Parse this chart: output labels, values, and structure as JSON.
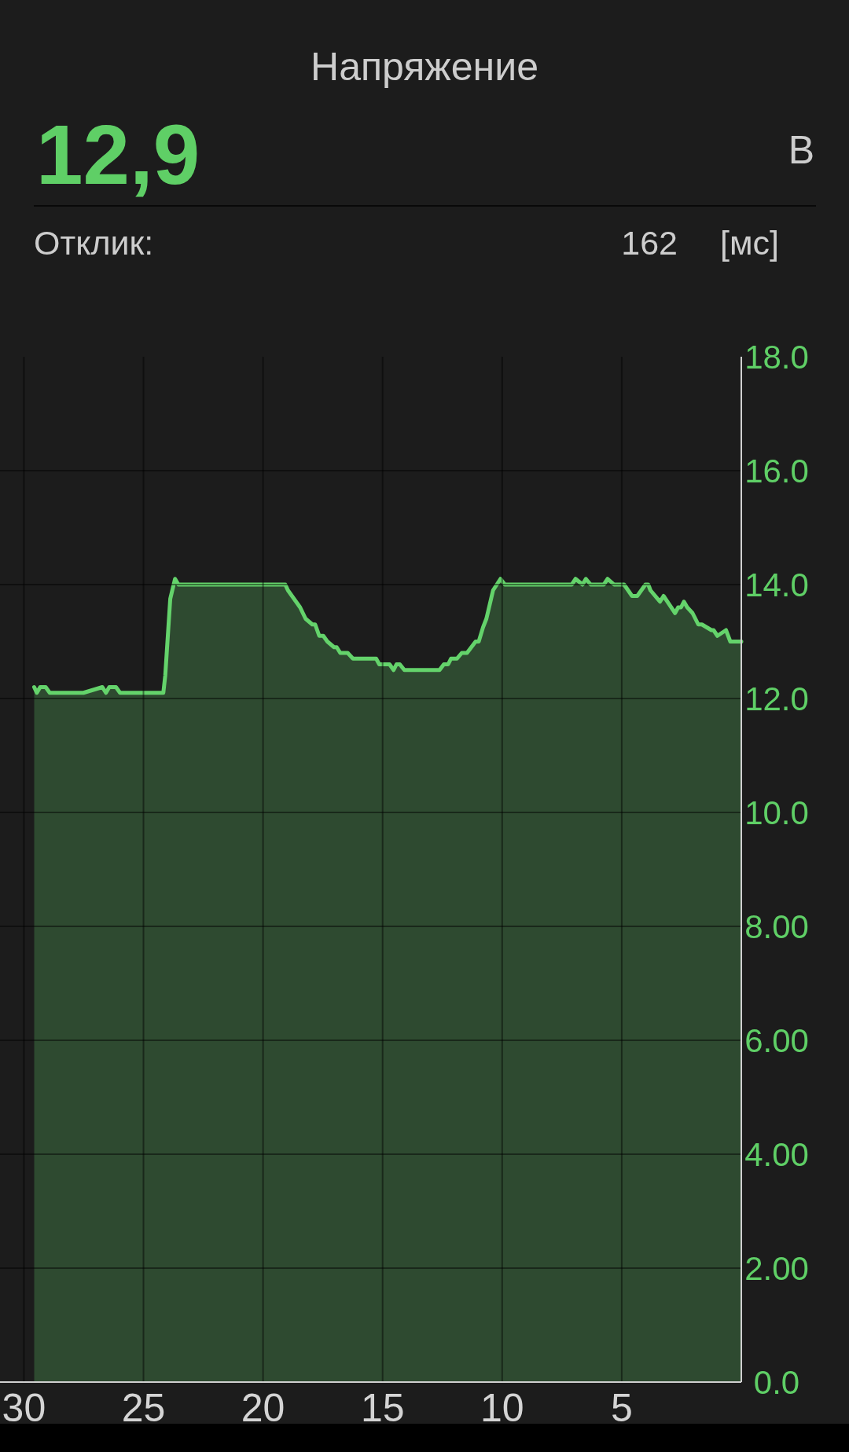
{
  "chart_data": {
    "type": "area",
    "title": "Напряжение",
    "annotations": [
      "12,9",
      "В",
      "Отклик:",
      "162",
      "[мс]"
    ],
    "x": [
      29.57,
      29.46,
      29.32,
      29.09,
      28.92,
      27.51,
      26.72,
      26.57,
      26.43,
      26.15,
      25.98,
      24.17,
      24.09,
      23.88,
      23.68,
      23.54,
      19.07,
      18.96,
      18.45,
      18.22,
      17.94,
      17.82,
      17.65,
      17.48,
      17.31,
      17.03,
      16.92,
      16.77,
      16.46,
      16.24,
      15.27,
      15.14,
      14.71,
      14.54,
      14.42,
      14.28,
      14.09,
      12.62,
      12.44,
      12.26,
      12.14,
      11.89,
      11.69,
      11.47,
      11.11,
      10.98,
      10.8,
      10.66,
      10.38,
      10.07,
      9.89,
      7.09,
      6.93,
      6.64,
      6.5,
      6.3,
      5.75,
      5.59,
      5.32,
      4.9,
      4.57,
      4.35,
      4.01,
      3.89,
      3.8,
      3.4,
      3.25,
      3.01,
      2.77,
      2.64,
      2.52,
      2.4,
      2.26,
      2.04,
      1.8,
      1.65,
      1.25,
      1.16,
      1,
      0.64,
      0.46,
      0
    ],
    "series": [
      {
        "color": "#64d36b",
        "values": [
          12.2,
          12.1,
          12.2,
          12.2,
          12.1,
          12.1,
          12.2,
          12.1,
          12.2,
          12.2,
          12.1,
          12.1,
          12.4,
          13.75,
          14.1,
          14,
          14,
          13.9,
          13.6,
          13.4,
          13.3,
          13.3,
          13.1,
          13.1,
          13,
          12.9,
          12.9,
          12.8,
          12.8,
          12.7,
          12.7,
          12.6,
          12.6,
          12.5,
          12.6,
          12.6,
          12.5,
          12.5,
          12.6,
          12.6,
          12.7,
          12.7,
          12.8,
          12.8,
          13,
          13,
          13.25,
          13.4,
          13.9,
          14.1,
          14,
          14,
          14.1,
          14,
          14.1,
          14,
          14,
          14.1,
          14,
          14,
          13.8,
          13.8,
          14,
          14,
          13.9,
          13.7,
          13.8,
          13.65,
          13.5,
          13.6,
          13.6,
          13.7,
          13.6,
          13.5,
          13.3,
          13.3,
          13.2,
          13.2,
          13.1,
          13.2,
          13,
          13
        ]
      }
    ],
    "xlim": [
      31,
      0
    ],
    "xticks": [
      30,
      25,
      20,
      15,
      10,
      5
    ],
    "ylim": [
      0,
      18
    ],
    "yticks": [
      {
        "value": 0,
        "label": "0.0"
      },
      {
        "value": 2,
        "label": "2.00"
      },
      {
        "value": 4,
        "label": "4.00"
      },
      {
        "value": 6,
        "label": "6.00"
      },
      {
        "value": 8,
        "label": "8.00"
      },
      {
        "value": 10,
        "label": "10.0"
      },
      {
        "value": 12,
        "label": "12.0"
      },
      {
        "value": 14,
        "label": "14.0"
      },
      {
        "value": 16,
        "label": "16.0"
      },
      {
        "value": 18,
        "label": "18.0"
      }
    ],
    "grid": true
  }
}
